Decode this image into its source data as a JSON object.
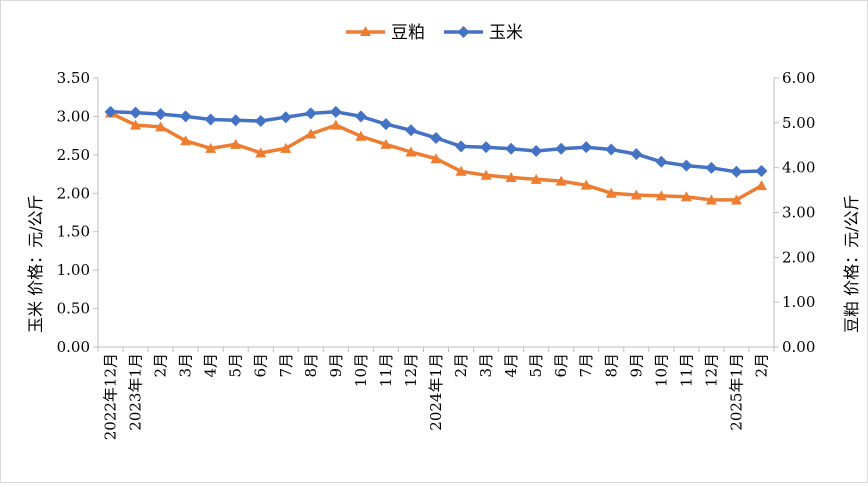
{
  "chart_data": {
    "type": "line",
    "categories": [
      "2022年12月",
      "2023年1月",
      "2月",
      "3月",
      "4月",
      "5月",
      "6月",
      "7月",
      "8月",
      "9月",
      "10月",
      "11月",
      "12月",
      "2024年1月",
      "2月",
      "3月",
      "4月",
      "5月",
      "6月",
      "7月",
      "8月",
      "9月",
      "10月",
      "11月",
      "12月",
      "2025年1月",
      "2月"
    ],
    "series": [
      {
        "name": "豆粕",
        "axis": "right",
        "color": "#ED7D31",
        "marker": "triangle",
        "values": [
          5.22,
          4.95,
          4.91,
          4.6,
          4.43,
          4.52,
          4.33,
          4.43,
          4.75,
          4.95,
          4.7,
          4.52,
          4.35,
          4.2,
          3.92,
          3.83,
          3.78,
          3.74,
          3.7,
          3.61,
          3.43,
          3.39,
          3.37,
          3.35,
          3.28,
          3.28,
          3.6
        ]
      },
      {
        "name": "玉米",
        "axis": "left",
        "color": "#4472C4",
        "marker": "diamond",
        "values": [
          3.06,
          3.05,
          3.03,
          3.0,
          2.96,
          2.95,
          2.94,
          2.99,
          3.04,
          3.06,
          3.0,
          2.9,
          2.82,
          2.72,
          2.61,
          2.6,
          2.58,
          2.55,
          2.58,
          2.6,
          2.57,
          2.51,
          2.41,
          2.36,
          2.33,
          2.28,
          2.29
        ]
      }
    ],
    "y_left": {
      "label": "玉米   价格：元/公斤",
      "ylim": [
        0,
        3.5
      ],
      "ticks": [
        "0.00",
        "0.50",
        "1.00",
        "1.50",
        "2.00",
        "2.50",
        "3.00",
        "3.50"
      ]
    },
    "y_right": {
      "label": "豆粕   价格：元/公斤",
      "ylim": [
        0,
        6
      ],
      "ticks": [
        "0.00",
        "1.00",
        "2.00",
        "3.00",
        "4.00",
        "5.00",
        "6.00"
      ]
    },
    "legend": {
      "position": "top-center",
      "entries": [
        "豆粕",
        "玉米"
      ]
    },
    "grid": false
  }
}
